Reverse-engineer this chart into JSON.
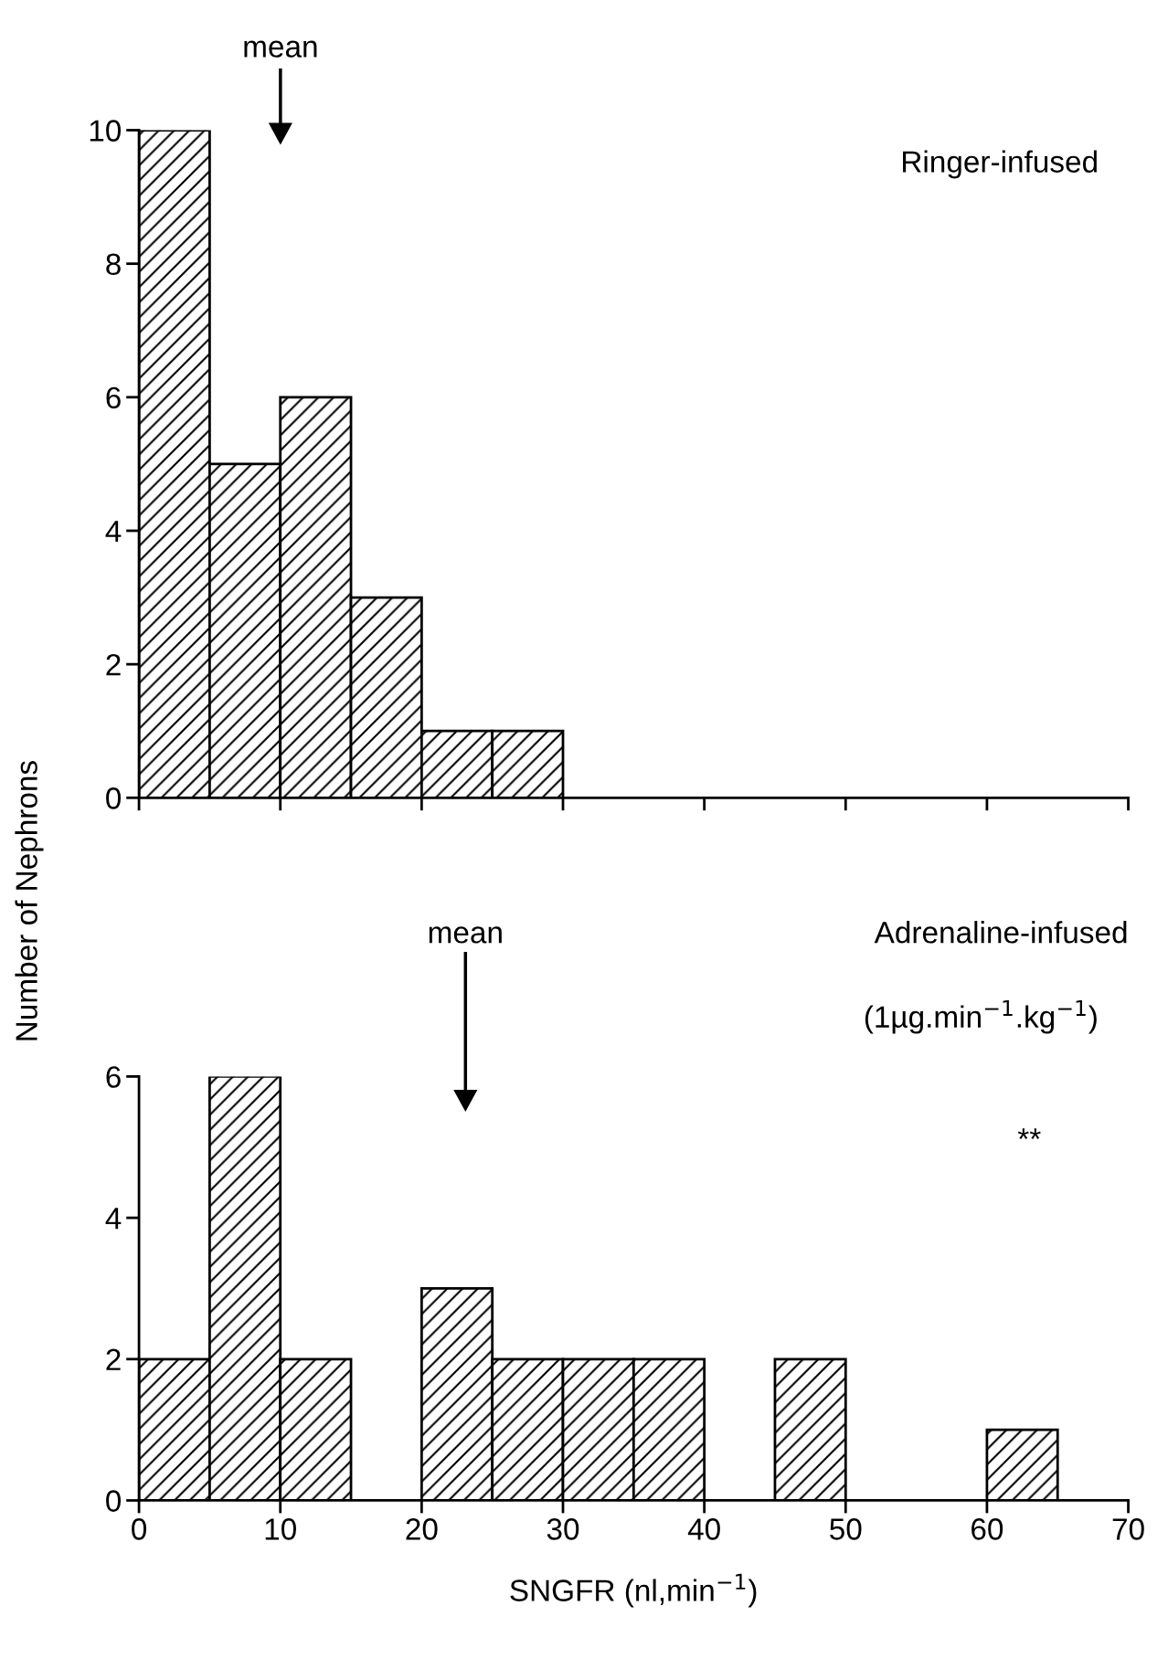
{
  "chart_data": [
    {
      "type": "histogram",
      "bins": [
        0,
        5,
        10,
        15,
        20,
        25,
        30
      ],
      "values": [
        10,
        5,
        6,
        3,
        1,
        1
      ],
      "color": "#000000",
      "ylabel": "Number of Nephrons",
      "xlim": [
        0,
        70
      ],
      "xticks": [
        0,
        10,
        20,
        30,
        40,
        50,
        60,
        70
      ],
      "ylim": [
        0,
        10
      ],
      "yticks": [
        0,
        2,
        4,
        6,
        8,
        10
      ],
      "tick_labels": "y",
      "grid": false,
      "legend": false,
      "annotations": [
        "mean",
        "Ringer-infused"
      ]
    },
    {
      "type": "histogram",
      "bins": [
        0,
        5,
        10,
        15,
        20,
        25,
        30,
        35,
        40,
        45,
        50,
        55,
        60,
        65
      ],
      "values": [
        2,
        6,
        2,
        0,
        3,
        2,
        2,
        2,
        0,
        2,
        0,
        0,
        1
      ],
      "color": "#000000",
      "xlabel": "SNGFR (nl,min$^{−1}$)",
      "xlim": [
        0,
        70
      ],
      "xticks": [
        0,
        10,
        20,
        30,
        40,
        50,
        60,
        70
      ],
      "ylim": [
        0,
        6
      ],
      "yticks": [
        0,
        2,
        4,
        6
      ],
      "grid": false,
      "legend": false,
      "annotations": [
        "mean",
        "Adrenaline-infused",
        "(1µg.min$^{−1}$.kg$^{−1}$)",
        "**"
      ]
    }
  ]
}
